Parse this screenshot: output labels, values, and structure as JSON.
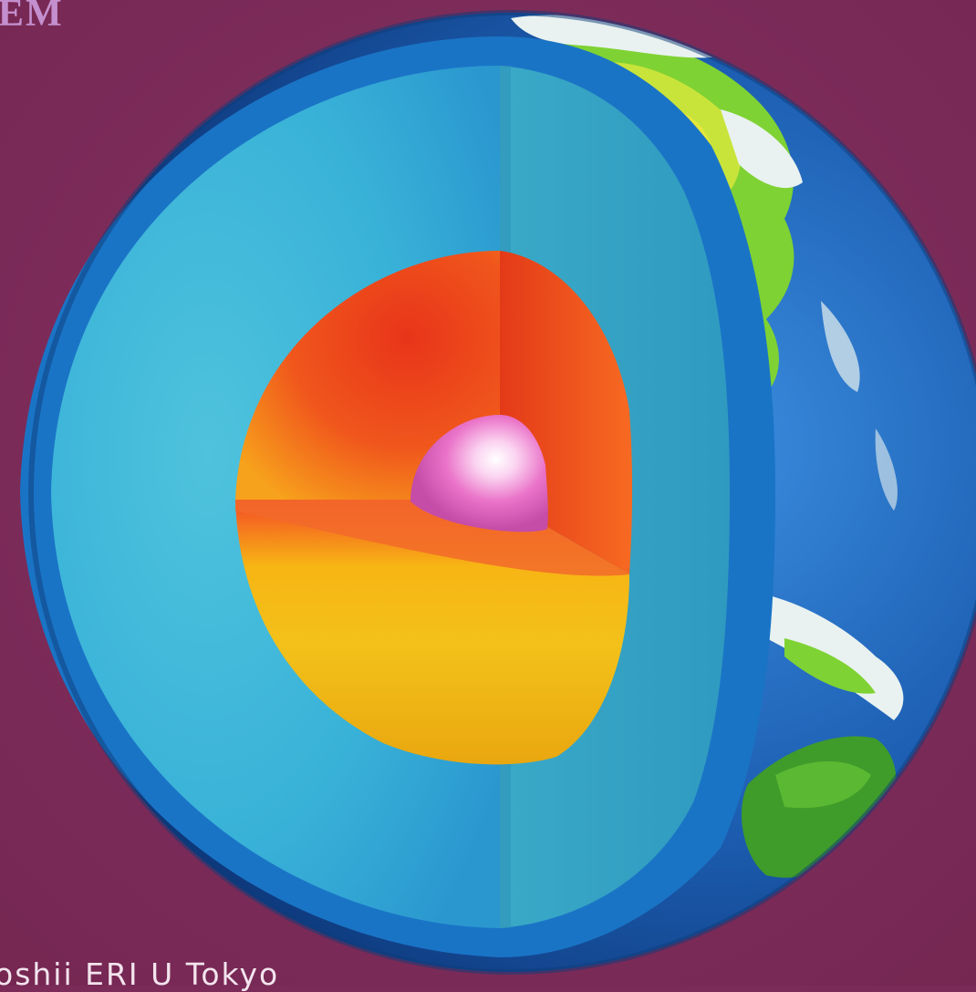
{
  "corner_text": "EM",
  "credit_text": "oshii  ERI  U Tokyo",
  "colors": {
    "background": "#7b2b58",
    "crust_rim": "#1a74c6",
    "mantle": "#39b2d8",
    "outer_core": "#f04e1a",
    "outer_core_cut": "#f7c214",
    "inner_core": "#ea74c9",
    "ocean": "#1d5fb3",
    "land": "#7fd233",
    "ice_cloud": "#e9f2f0"
  },
  "icons": {
    "globe": "earth-cutaway-icon"
  }
}
